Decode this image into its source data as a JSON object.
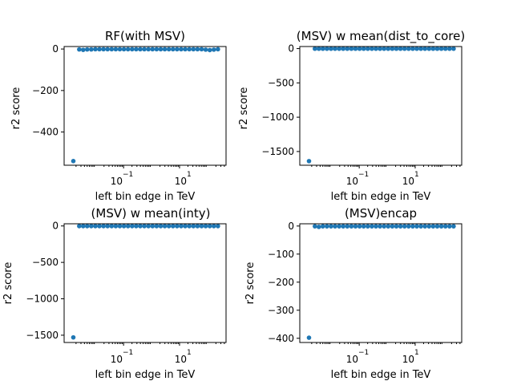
{
  "colors": {
    "marker": "#1f77b4"
  },
  "chart_data": [
    {
      "type": "scatter",
      "title": "RF(with MSV)",
      "xlabel": "left bin edge in TeV",
      "ylabel": "r2 score",
      "xscale": "log",
      "xlim": [
        0.00075,
        460
      ],
      "ylim": [
        -560,
        12
      ],
      "xtick_labels": [
        "10",
        "−1",
        "10",
        "1"
      ],
      "yticks": [
        0,
        -200,
        -400
      ],
      "ytick_labels": [
        "0",
        "−200",
        "−400"
      ],
      "x": [
        0.0016,
        0.0026,
        0.0036,
        0.005,
        0.007,
        0.0098,
        0.0137,
        0.0192,
        0.0268,
        0.0375,
        0.0525,
        0.0735,
        0.1029,
        0.144,
        0.2016,
        0.2822,
        0.3951,
        0.5531,
        0.7744,
        1.084,
        1.518,
        2.125,
        2.975,
        4.165,
        5.831,
        8.163,
        11.43,
        16.0,
        22.4,
        31.36,
        43.9,
        61.46,
        86.05,
        120.5,
        168.6,
        236.1
      ],
      "y": [
        -540,
        -2,
        -4,
        -2,
        -2,
        -1,
        -1,
        -1,
        -1,
        -1,
        -1,
        -1,
        -1,
        -1,
        -1,
        -1,
        -1,
        -1,
        -1,
        -1,
        -1,
        -1,
        -1,
        -1,
        -1,
        -1,
        -1,
        -1,
        -1,
        -1,
        -1,
        -1,
        -3,
        -5,
        -3,
        -1
      ]
    },
    {
      "type": "scatter",
      "title": "(MSV) w mean(dist_to_core)",
      "xlabel": "left bin edge in TeV",
      "ylabel": "r2 score",
      "xscale": "log",
      "xlim": [
        0.00075,
        460
      ],
      "ylim": [
        -1700,
        30
      ],
      "xtick_labels": [
        "10",
        "−1",
        "10",
        "1"
      ],
      "yticks": [
        0,
        -500,
        -1000,
        -1500
      ],
      "ytick_labels": [
        "0",
        "−500",
        "−1000",
        "−1500"
      ],
      "x": [
        0.0016,
        0.0026,
        0.0036,
        0.005,
        0.007,
        0.0098,
        0.0137,
        0.0192,
        0.0268,
        0.0375,
        0.0525,
        0.0735,
        0.1029,
        0.144,
        0.2016,
        0.2822,
        0.3951,
        0.5531,
        0.7744,
        1.084,
        1.518,
        2.125,
        2.975,
        4.165,
        5.831,
        8.163,
        11.43,
        16.0,
        22.4,
        31.36,
        43.9,
        61.46,
        86.05,
        120.5,
        168.6,
        236.1
      ],
      "y": [
        -1640,
        -2,
        -2,
        -2,
        -2,
        -2,
        -2,
        -2,
        -2,
        -2,
        -2,
        -2,
        -2,
        -2,
        -2,
        -2,
        -2,
        -2,
        -2,
        -2,
        -2,
        -2,
        -2,
        -2,
        -2,
        -2,
        -2,
        -2,
        -2,
        -2,
        -2,
        -2,
        -2,
        -2,
        -2,
        -2
      ]
    },
    {
      "type": "scatter",
      "title": "(MSV) w mean(inty)",
      "xlabel": "left bin edge in TeV",
      "ylabel": "r2 score",
      "xscale": "log",
      "xlim": [
        0.00075,
        460
      ],
      "ylim": [
        -1600,
        30
      ],
      "xtick_labels": [
        "10",
        "−1",
        "10",
        "1"
      ],
      "yticks": [
        0,
        -500,
        -1000,
        -1500
      ],
      "ytick_labels": [
        "0",
        "−500",
        "−1000",
        "−1500"
      ],
      "x": [
        0.0016,
        0.0026,
        0.0036,
        0.005,
        0.007,
        0.0098,
        0.0137,
        0.0192,
        0.0268,
        0.0375,
        0.0525,
        0.0735,
        0.1029,
        0.144,
        0.2016,
        0.2822,
        0.3951,
        0.5531,
        0.7744,
        1.084,
        1.518,
        2.125,
        2.975,
        4.165,
        5.831,
        8.163,
        11.43,
        16.0,
        22.4,
        31.36,
        43.9,
        61.46,
        86.05,
        120.5,
        168.6,
        236.1
      ],
      "y": [
        -1530,
        -2,
        -2,
        -2,
        -2,
        -2,
        -2,
        -2,
        -2,
        -2,
        -2,
        -2,
        -2,
        -2,
        -2,
        -2,
        -2,
        -2,
        -2,
        -2,
        -2,
        -2,
        -2,
        -2,
        -2,
        -2,
        -2,
        -2,
        -2,
        -2,
        -2,
        -2,
        -2,
        -2,
        -2,
        -2
      ]
    },
    {
      "type": "scatter",
      "title": "(MSV)encap",
      "xlabel": "left bin edge in TeV",
      "ylabel": "r2 score",
      "xscale": "log",
      "xlim": [
        0.00075,
        460
      ],
      "ylim": [
        -415,
        8
      ],
      "xtick_labels": [
        "10",
        "−1",
        "10",
        "1"
      ],
      "yticks": [
        0,
        -100,
        -200,
        -300,
        -400
      ],
      "ytick_labels": [
        "0",
        "−100",
        "−200",
        "−300",
        "−400"
      ],
      "x": [
        0.0016,
        0.0026,
        0.0036,
        0.005,
        0.007,
        0.0098,
        0.0137,
        0.0192,
        0.0268,
        0.0375,
        0.0525,
        0.0735,
        0.1029,
        0.144,
        0.2016,
        0.2822,
        0.3951,
        0.5531,
        0.7744,
        1.084,
        1.518,
        2.125,
        2.975,
        4.165,
        5.831,
        8.163,
        11.43,
        16.0,
        22.4,
        31.36,
        43.9,
        61.46,
        86.05,
        120.5,
        168.6,
        236.1
      ],
      "y": [
        -398,
        -1,
        -3,
        -1,
        -1,
        -1,
        -1,
        -1,
        -1,
        -1,
        -1,
        -1,
        -1,
        -1,
        -1,
        -1,
        -1,
        -1,
        -1,
        -1,
        -1,
        -1,
        -1,
        -1,
        -1,
        -1,
        -1,
        -1,
        -1,
        -1,
        -1,
        -1,
        -1,
        -1,
        -1,
        -1
      ]
    }
  ]
}
